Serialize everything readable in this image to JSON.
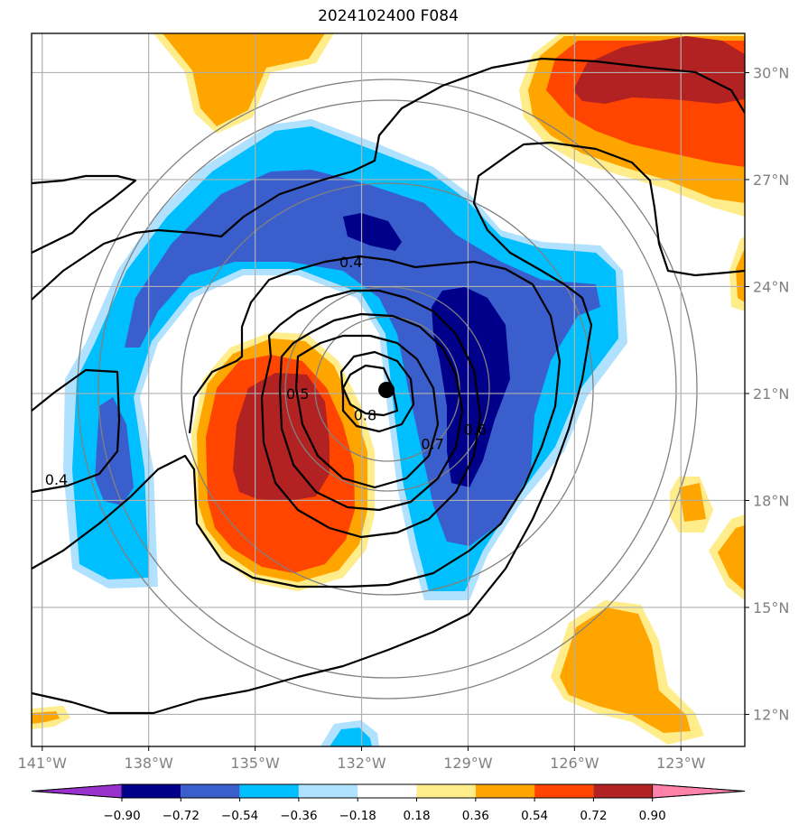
{
  "title": "2024102400 F084",
  "chart_data": {
    "type": "map",
    "title": "2024102400 F084",
    "lon_range": [
      -141.3,
      -121.2
    ],
    "lat_range": [
      11.1,
      31.1
    ],
    "x_ticks": [
      {
        "value": -141,
        "label": "141°W"
      },
      {
        "value": -138,
        "label": "138°W"
      },
      {
        "value": -135,
        "label": "135°W"
      },
      {
        "value": -132,
        "label": "132°W"
      },
      {
        "value": -129,
        "label": "129°W"
      },
      {
        "value": -126,
        "label": "126°W"
      },
      {
        "value": -123,
        "label": "123°W"
      }
    ],
    "y_ticks": [
      {
        "value": 12,
        "label": "12°N"
      },
      {
        "value": 15,
        "label": "15°N"
      },
      {
        "value": 18,
        "label": "18°N"
      },
      {
        "value": 21,
        "label": "21°N"
      },
      {
        "value": 24,
        "label": "24°N"
      },
      {
        "value": 27,
        "label": "27°N"
      },
      {
        "value": 30,
        "label": "30°N"
      }
    ],
    "grid": true,
    "center_marker": {
      "lon": -131.3,
      "lat": 21.1
    },
    "range_rings_deg": [
      2,
      2.9,
      5.7,
      8.6
    ],
    "contour_labels": [
      {
        "text": "0.4",
        "lon": -132.3,
        "lat": 24.7
      },
      {
        "text": "0.4",
        "lon": -140.6,
        "lat": 18.6
      },
      {
        "text": "0.5",
        "lon": -133.8,
        "lat": 21.0
      },
      {
        "text": "0.6",
        "lon": -128.8,
        "lat": 20.0
      },
      {
        "text": "0.7",
        "lon": -130.0,
        "lat": 19.6
      },
      {
        "text": "0.8",
        "lon": -131.9,
        "lat": 20.4
      }
    ],
    "colorbar": {
      "labels": [
        "−0.90",
        "−0.72",
        "−0.54",
        "−0.36",
        "−0.18",
        "0.18",
        "0.36",
        "0.54",
        "0.72",
        "0.90"
      ],
      "colors": [
        "#9932cc",
        "#00008b",
        "#3a5fcd",
        "#00bfff",
        "#b0e2ff",
        "#ffffff",
        "#ffec8b",
        "#ffa500",
        "#ff4500",
        "#b22222",
        "#ff82ab"
      ]
    }
  }
}
